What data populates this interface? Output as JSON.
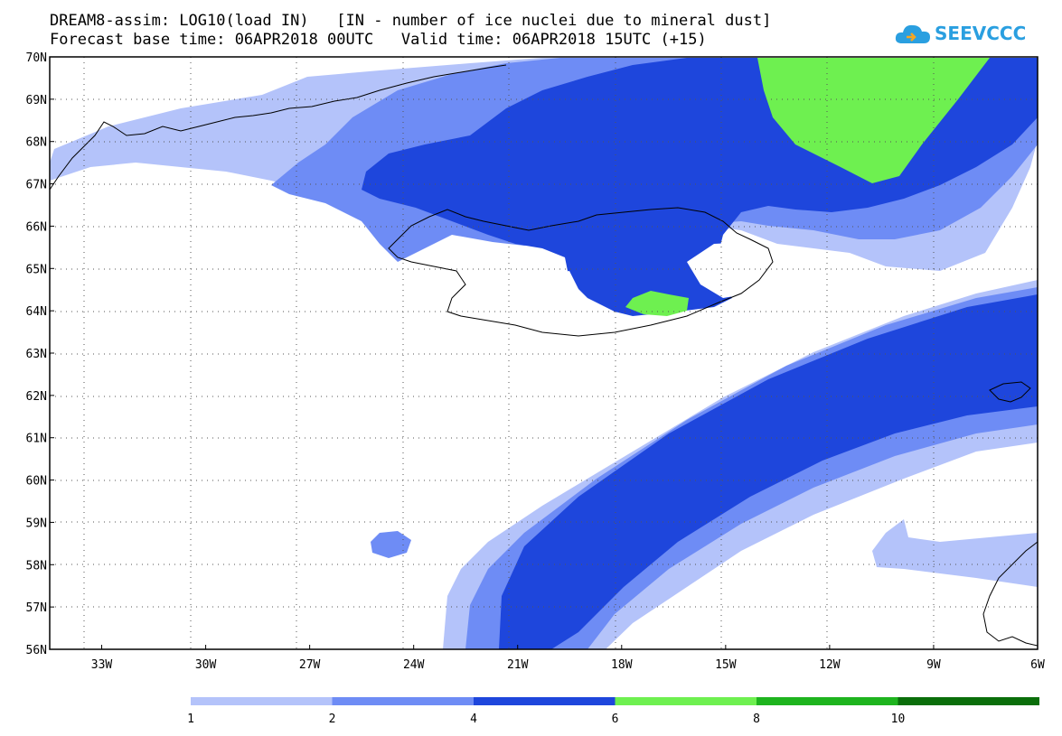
{
  "header": {
    "line1": "DREAM8-assim: LOG10(load IN)   [IN - number of ice nuclei due to mineral dust]",
    "line2": "Forecast base time: 06APR2018 00UTC   Valid time: 06APR2018 15UTC (+15)"
  },
  "logo": {
    "text": "SEEVCCC",
    "icon": "cloud-logo-icon"
  },
  "map": {
    "lat_range": [
      56,
      70
    ],
    "lon_range": [
      -34.5,
      -6
    ],
    "lat_ticks": [
      "56N",
      "57N",
      "58N",
      "59N",
      "60N",
      "61N",
      "62N",
      "63N",
      "64N",
      "65N",
      "66N",
      "67N",
      "68N",
      "69N",
      "70N"
    ],
    "lon_ticks": [
      "33W",
      "30W",
      "27W",
      "24W",
      "21W",
      "18W",
      "15W",
      "12W",
      "9W",
      "6W"
    ],
    "grid": true
  },
  "legend": {
    "labels": [
      "1",
      "2",
      "4",
      "6",
      "8",
      "10"
    ],
    "colors": [
      "#b4c3fa",
      "#6e8cf5",
      "#1e46dc",
      "#6ef050",
      "#1eb41e",
      "#0a6e0a"
    ]
  },
  "colors": {
    "level1": "#b4c3fa",
    "level2": "#6e8cf5",
    "level3": "#1e46dc",
    "level4": "#6ef050"
  }
}
